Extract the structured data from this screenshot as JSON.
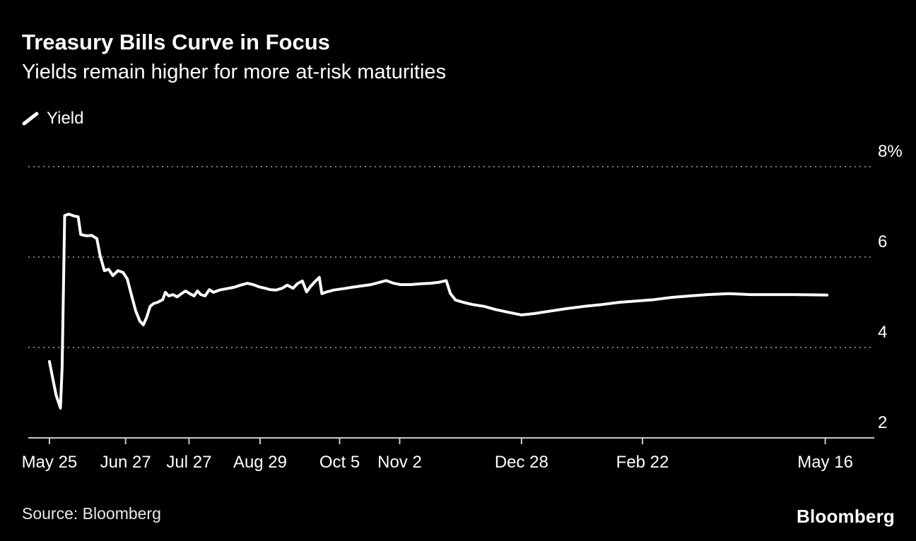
{
  "footer": {
    "source": "Source: Bloomberg",
    "brand": "Bloomberg"
  },
  "chart_data": {
    "type": "line",
    "title": "Treasury Bills Curve in Focus",
    "subtitle": "Yields remain higher for more at-risk maturities",
    "xlabel": "",
    "ylabel": "",
    "ylim": [
      2,
      8
    ],
    "grid": "horizontal-dotted",
    "legend_position": "top-left",
    "colors": {
      "background": "#000000",
      "line": "#ffffff",
      "grid": "#7a7a7a",
      "axis": "#c9c9c9",
      "text": "#ffffff"
    },
    "yticks": [
      {
        "value": 8,
        "label": "8%"
      },
      {
        "value": 6,
        "label": "6"
      },
      {
        "value": 4,
        "label": "4"
      },
      {
        "value": 2,
        "label": "2"
      }
    ],
    "xticks": [
      {
        "pos": 0.025,
        "label": "May 25"
      },
      {
        "pos": 0.115,
        "label": "Jun 27"
      },
      {
        "pos": 0.19,
        "label": "Jul 27"
      },
      {
        "pos": 0.274,
        "label": "Aug 29"
      },
      {
        "pos": 0.368,
        "label": "Oct 5"
      },
      {
        "pos": 0.439,
        "label": "Nov 2"
      },
      {
        "pos": 0.583,
        "label": "Dec 28"
      },
      {
        "pos": 0.726,
        "label": "Feb 22"
      },
      {
        "pos": 0.942,
        "label": "May 16"
      }
    ],
    "series": [
      {
        "name": "Yield",
        "color": "#ffffff",
        "points": [
          [
            0.025,
            3.69
          ],
          [
            0.029,
            3.31
          ],
          [
            0.033,
            2.94
          ],
          [
            0.038,
            2.66
          ],
          [
            0.04,
            3.56
          ],
          [
            0.043,
            6.92
          ],
          [
            0.048,
            6.95
          ],
          [
            0.054,
            6.91
          ],
          [
            0.059,
            6.89
          ],
          [
            0.062,
            6.5
          ],
          [
            0.069,
            6.47
          ],
          [
            0.075,
            6.48
          ],
          [
            0.081,
            6.41
          ],
          [
            0.085,
            6.03
          ],
          [
            0.09,
            5.7
          ],
          [
            0.095,
            5.73
          ],
          [
            0.1,
            5.59
          ],
          [
            0.106,
            5.7
          ],
          [
            0.112,
            5.66
          ],
          [
            0.117,
            5.52
          ],
          [
            0.122,
            5.16
          ],
          [
            0.127,
            4.81
          ],
          [
            0.132,
            4.58
          ],
          [
            0.136,
            4.5
          ],
          [
            0.14,
            4.67
          ],
          [
            0.144,
            4.91
          ],
          [
            0.148,
            4.97
          ],
          [
            0.153,
            5.0
          ],
          [
            0.159,
            5.06
          ],
          [
            0.162,
            5.22
          ],
          [
            0.166,
            5.14
          ],
          [
            0.171,
            5.17
          ],
          [
            0.176,
            5.12
          ],
          [
            0.181,
            5.19
          ],
          [
            0.186,
            5.25
          ],
          [
            0.191,
            5.19
          ],
          [
            0.196,
            5.14
          ],
          [
            0.2,
            5.25
          ],
          [
            0.204,
            5.17
          ],
          [
            0.209,
            5.14
          ],
          [
            0.214,
            5.28
          ],
          [
            0.219,
            5.22
          ],
          [
            0.226,
            5.27
          ],
          [
            0.234,
            5.3
          ],
          [
            0.243,
            5.33
          ],
          [
            0.251,
            5.38
          ],
          [
            0.259,
            5.42
          ],
          [
            0.266,
            5.39
          ],
          [
            0.273,
            5.34
          ],
          [
            0.28,
            5.31
          ],
          [
            0.286,
            5.28
          ],
          [
            0.293,
            5.27
          ],
          [
            0.3,
            5.31
          ],
          [
            0.306,
            5.38
          ],
          [
            0.313,
            5.31
          ],
          [
            0.318,
            5.41
          ],
          [
            0.324,
            5.47
          ],
          [
            0.329,
            5.23
          ],
          [
            0.334,
            5.36
          ],
          [
            0.34,
            5.48
          ],
          [
            0.344,
            5.55
          ],
          [
            0.347,
            5.19
          ],
          [
            0.353,
            5.23
          ],
          [
            0.361,
            5.27
          ],
          [
            0.372,
            5.3
          ],
          [
            0.382,
            5.33
          ],
          [
            0.393,
            5.36
          ],
          [
            0.405,
            5.39
          ],
          [
            0.417,
            5.45
          ],
          [
            0.423,
            5.48
          ],
          [
            0.432,
            5.42
          ],
          [
            0.44,
            5.39
          ],
          [
            0.452,
            5.39
          ],
          [
            0.464,
            5.41
          ],
          [
            0.475,
            5.42
          ],
          [
            0.485,
            5.44
          ],
          [
            0.494,
            5.48
          ],
          [
            0.499,
            5.19
          ],
          [
            0.505,
            5.05
          ],
          [
            0.514,
            5.0
          ],
          [
            0.525,
            4.95
          ],
          [
            0.539,
            4.91
          ],
          [
            0.552,
            4.84
          ],
          [
            0.567,
            4.78
          ],
          [
            0.583,
            4.72
          ],
          [
            0.598,
            4.75
          ],
          [
            0.615,
            4.8
          ],
          [
            0.636,
            4.86
          ],
          [
            0.657,
            4.91
          ],
          [
            0.678,
            4.95
          ],
          [
            0.699,
            5.0
          ],
          [
            0.72,
            5.03
          ],
          [
            0.74,
            5.06
          ],
          [
            0.761,
            5.11
          ],
          [
            0.782,
            5.14
          ],
          [
            0.803,
            5.17
          ],
          [
            0.828,
            5.19
          ],
          [
            0.854,
            5.17
          ],
          [
            0.879,
            5.17
          ],
          [
            0.904,
            5.17
          ],
          [
            0.944,
            5.16
          ]
        ]
      }
    ]
  }
}
